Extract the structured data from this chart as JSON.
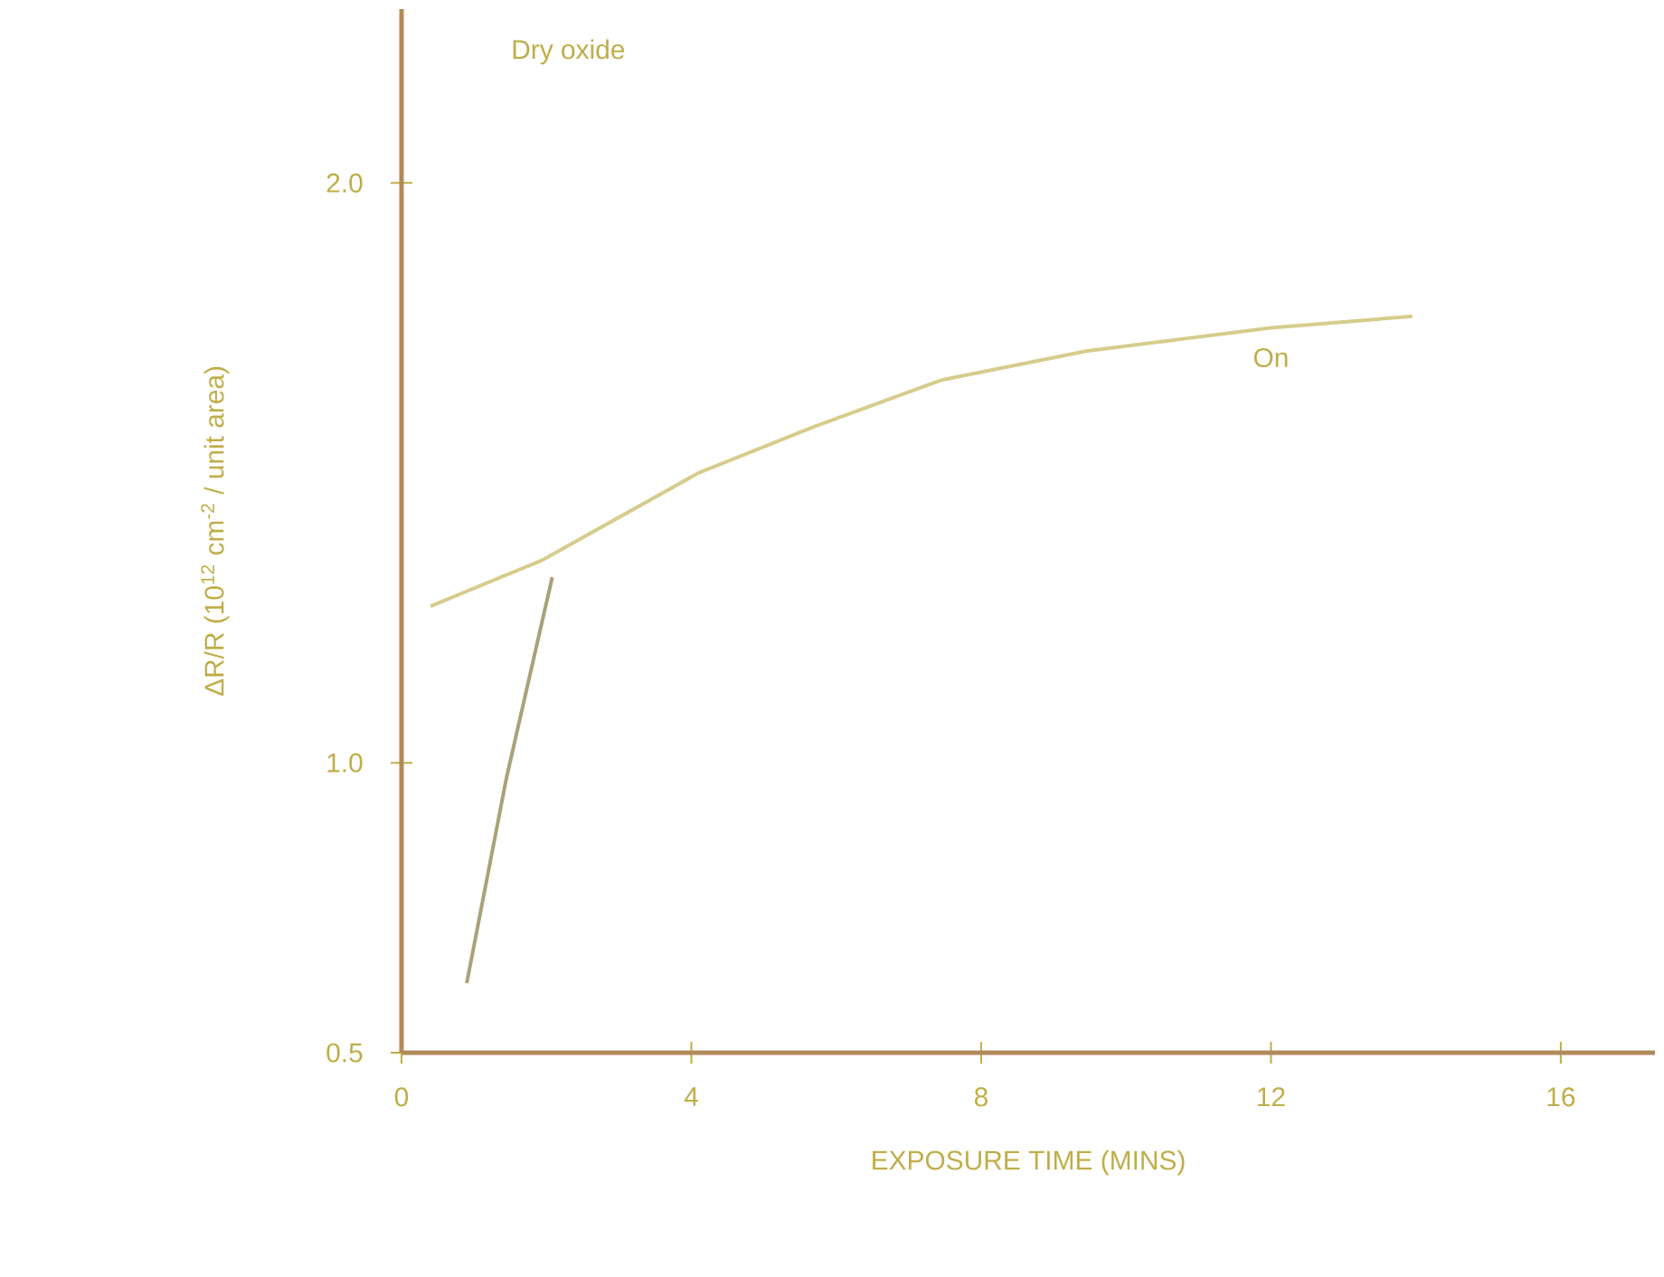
{
  "chart_data": {
    "type": "line",
    "title": "Dry oxide",
    "xlabel": "EXPOSURE TIME (MINS)",
    "ylabel": "ΔR/R (10$^{12}$ cm$^{-2}$ / unit area)",
    "xlim": [
      0,
      17.3
    ],
    "ylim": [
      0.5,
      2.3
    ],
    "xticks": [
      0,
      4,
      8,
      12,
      16
    ],
    "yticks": [
      {
        "value": 0.5,
        "label": "0.5"
      },
      {
        "value": 1.0,
        "label": "1.0"
      },
      {
        "value": 2.0,
        "label": "2.0"
      }
    ],
    "series": [
      {
        "color": "#d6cc8c",
        "x": [
          0.4,
          1.95,
          4.1,
          5.7,
          7.45,
          9.45,
          12,
          13.95
        ],
        "values": [
          1.27,
          1.35,
          1.5,
          1.58,
          1.66,
          1.71,
          1.75,
          1.77
        ]
      },
      {
        "color": "#a8a27a",
        "x": [
          0.9,
          1.45,
          2.08
        ],
        "values": [
          0.62,
          0.975,
          1.32
        ]
      }
    ],
    "annotations": [
      {
        "text": "On",
        "x": 12,
        "y": 1.75
      }
    ]
  }
}
